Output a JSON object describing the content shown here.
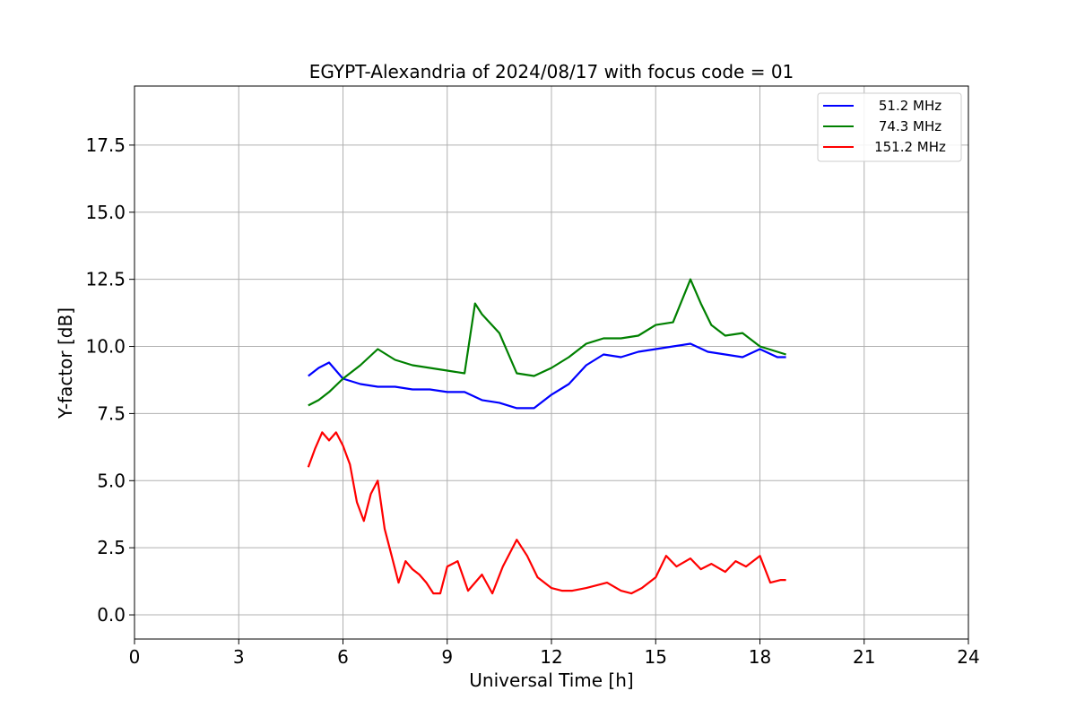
{
  "chart_data": {
    "type": "line",
    "title": "EGYPT-Alexandria of 2024/08/17 with focus code = 01",
    "xlabel": "Universal Time [h]",
    "ylabel": "Y-factor [dB]",
    "xlim": [
      0,
      24
    ],
    "ylim": [
      -0.9,
      19.7
    ],
    "xticks": [
      0,
      3,
      6,
      9,
      12,
      15,
      18,
      21,
      24
    ],
    "yticks": [
      0.0,
      2.5,
      5.0,
      7.5,
      10.0,
      12.5,
      15.0,
      17.5
    ],
    "xtick_labels": [
      "0",
      "3",
      "6",
      "9",
      "12",
      "15",
      "18",
      "21",
      "24"
    ],
    "ytick_labels": [
      "0.0",
      "2.5",
      "5.0",
      "7.5",
      "10.0",
      "12.5",
      "15.0",
      "17.5"
    ],
    "grid": true,
    "legend_position": "upper right",
    "series": [
      {
        "name": "51.2 MHz",
        "color": "#0000ff",
        "x": [
          5.0,
          5.3,
          5.6,
          6.0,
          6.5,
          7.0,
          7.5,
          8.0,
          8.5,
          9.0,
          9.5,
          10.0,
          10.5,
          11.0,
          11.5,
          12.0,
          12.5,
          13.0,
          13.5,
          14.0,
          14.5,
          15.0,
          15.5,
          16.0,
          16.5,
          17.0,
          17.5,
          18.0,
          18.5,
          18.75
        ],
        "y": [
          8.9,
          9.2,
          9.4,
          8.8,
          8.6,
          8.5,
          8.5,
          8.4,
          8.4,
          8.3,
          8.3,
          8.0,
          7.9,
          7.7,
          7.7,
          8.2,
          8.6,
          9.3,
          9.7,
          9.6,
          9.8,
          9.9,
          10.0,
          10.1,
          9.8,
          9.7,
          9.6,
          9.9,
          9.6,
          9.6
        ]
      },
      {
        "name": "74.3 MHz",
        "color": "#008000",
        "x": [
          5.0,
          5.3,
          5.6,
          6.0,
          6.5,
          7.0,
          7.5,
          8.0,
          8.5,
          9.0,
          9.5,
          9.8,
          10.0,
          10.5,
          11.0,
          11.5,
          12.0,
          12.5,
          13.0,
          13.5,
          14.0,
          14.5,
          15.0,
          15.5,
          16.0,
          16.3,
          16.6,
          17.0,
          17.5,
          18.0,
          18.5,
          18.75
        ],
        "y": [
          7.8,
          8.0,
          8.3,
          8.8,
          9.3,
          9.9,
          9.5,
          9.3,
          9.2,
          9.1,
          9.0,
          11.6,
          11.2,
          10.5,
          9.0,
          8.9,
          9.2,
          9.6,
          10.1,
          10.3,
          10.3,
          10.4,
          10.8,
          10.9,
          12.5,
          11.6,
          10.8,
          10.4,
          10.5,
          10.0,
          9.8,
          9.7
        ]
      },
      {
        "name": "151.2 MHz",
        "color": "#ff0000",
        "x": [
          5.0,
          5.2,
          5.4,
          5.6,
          5.8,
          6.0,
          6.2,
          6.4,
          6.6,
          6.8,
          7.0,
          7.2,
          7.4,
          7.6,
          7.8,
          8.0,
          8.2,
          8.4,
          8.6,
          8.8,
          9.0,
          9.3,
          9.6,
          10.0,
          10.3,
          10.6,
          11.0,
          11.3,
          11.6,
          12.0,
          12.3,
          12.6,
          13.0,
          13.3,
          13.6,
          14.0,
          14.3,
          14.6,
          15.0,
          15.3,
          15.6,
          16.0,
          16.3,
          16.6,
          17.0,
          17.3,
          17.6,
          18.0,
          18.3,
          18.6,
          18.75
        ],
        "y": [
          5.5,
          6.2,
          6.8,
          6.5,
          6.8,
          6.3,
          5.6,
          4.2,
          3.5,
          4.5,
          5.0,
          3.2,
          2.2,
          1.2,
          2.0,
          1.7,
          1.5,
          1.2,
          0.8,
          0.8,
          1.8,
          2.0,
          0.9,
          1.5,
          0.8,
          1.8,
          2.8,
          2.2,
          1.4,
          1.0,
          0.9,
          0.9,
          1.0,
          1.1,
          1.2,
          0.9,
          0.8,
          1.0,
          1.4,
          2.2,
          1.8,
          2.1,
          1.7,
          1.9,
          1.6,
          2.0,
          1.8,
          2.2,
          1.2,
          1.3,
          1.3
        ]
      }
    ]
  }
}
